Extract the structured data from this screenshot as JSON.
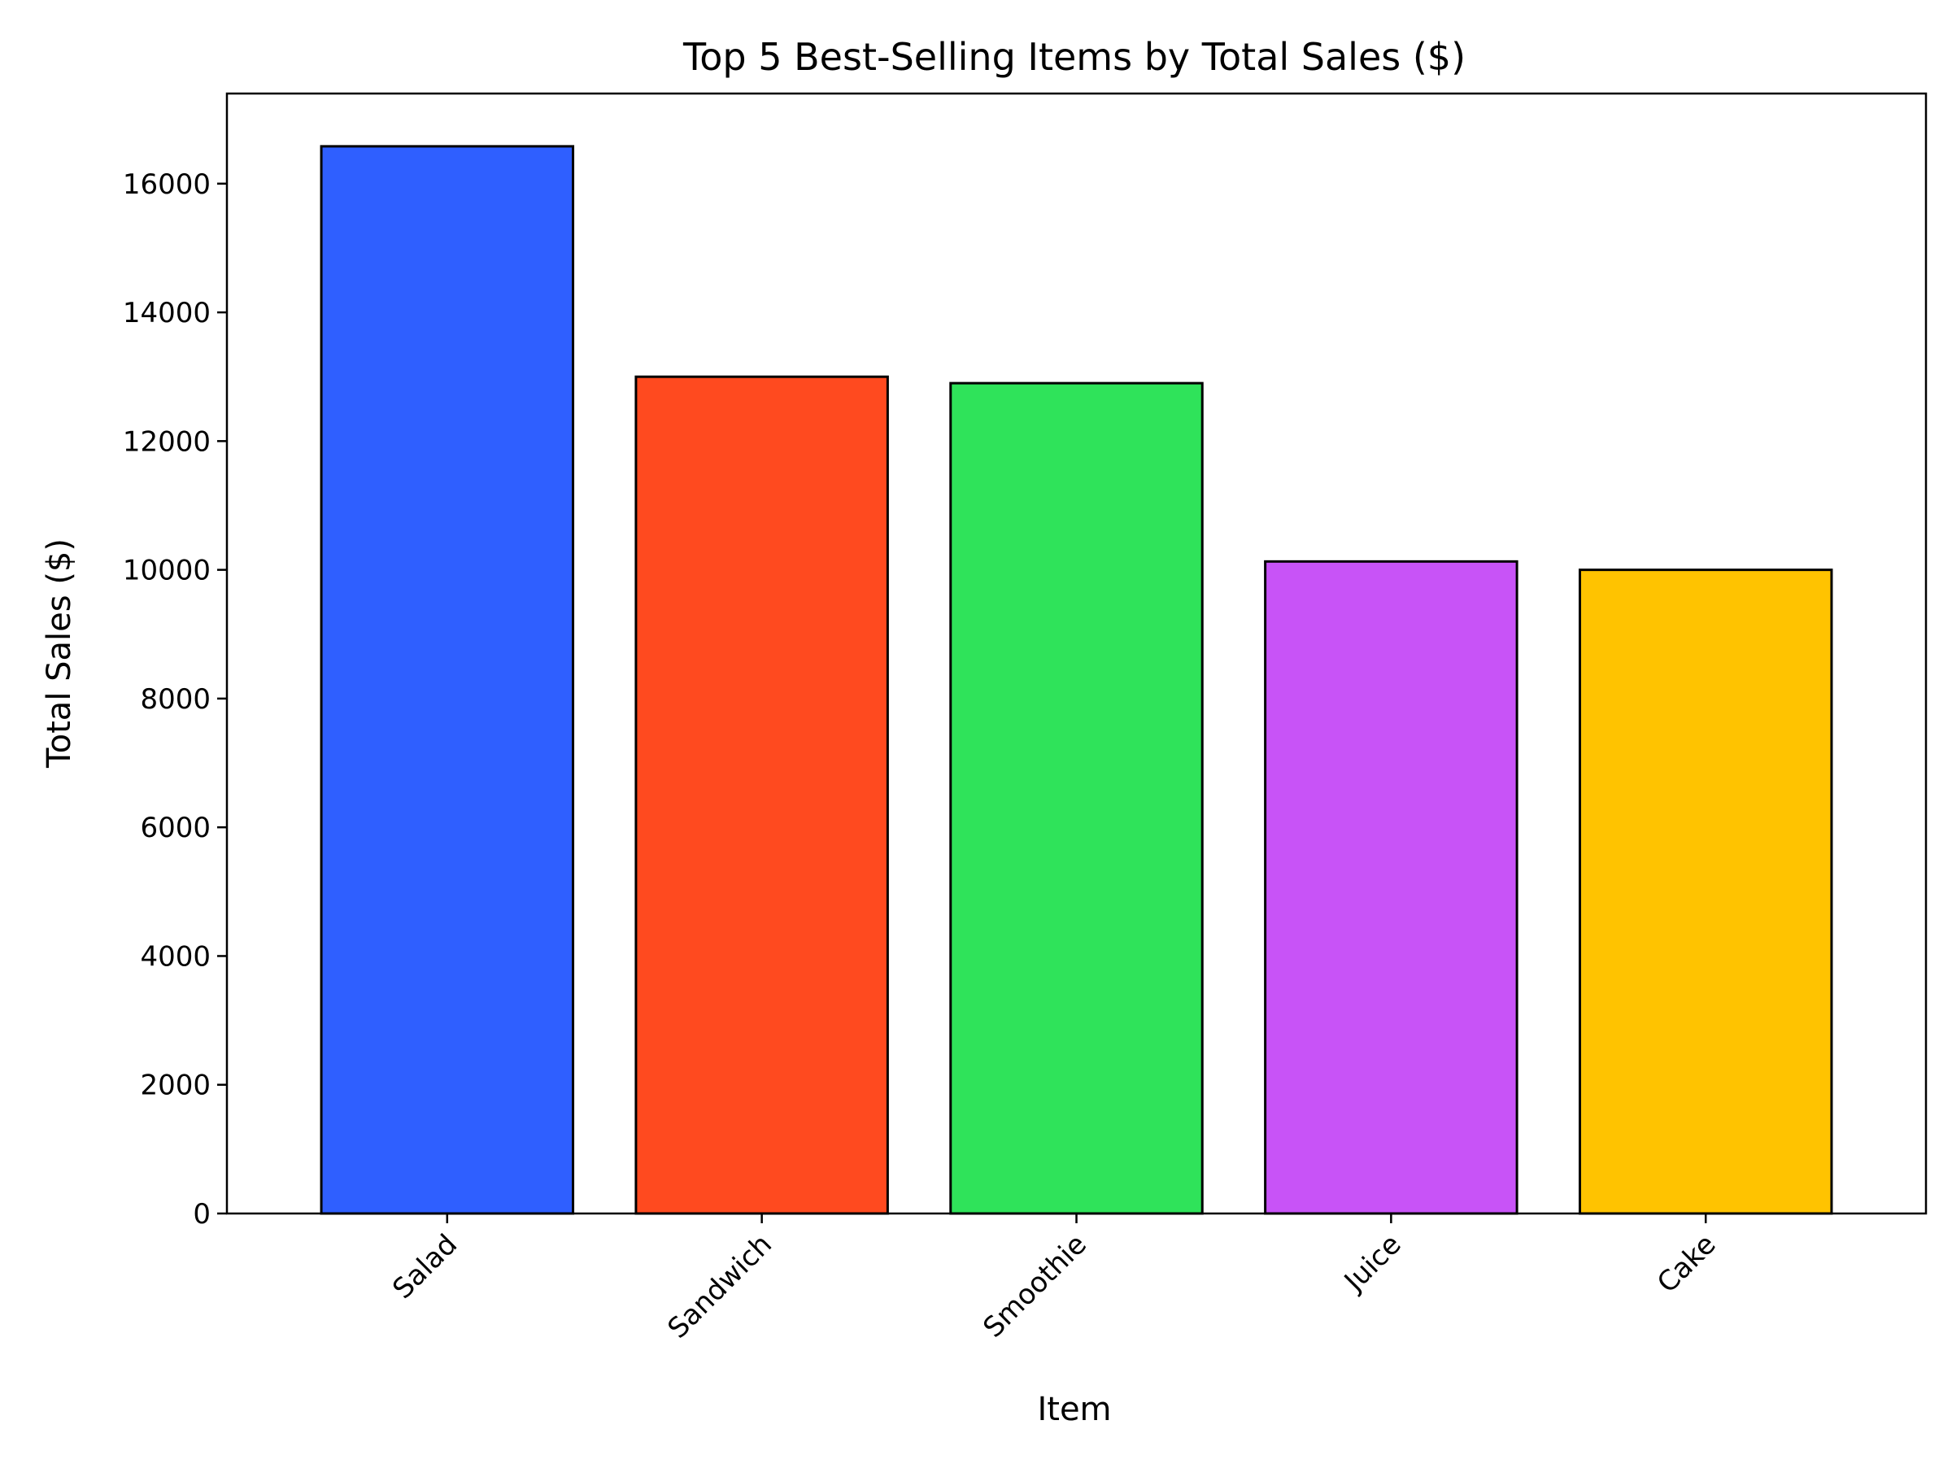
{
  "chart_data": {
    "type": "bar",
    "title": "Top 5 Best-Selling Items by Total Sales ($)",
    "xlabel": "Item",
    "ylabel": "Total Sales ($)",
    "categories": [
      "Salad",
      "Sandwich",
      "Smoothie",
      "Juice",
      "Cake"
    ],
    "values": [
      16580,
      13000,
      12900,
      10130,
      10000
    ],
    "colors": [
      "#2f5fff",
      "#ff4a1f",
      "#2fe35a",
      "#c853f7",
      "#ffc300"
    ],
    "ylim": [
      0,
      17400
    ],
    "yticks": [
      0,
      2000,
      4000,
      6000,
      8000,
      10000,
      12000,
      14000,
      16000
    ],
    "grid": false,
    "legend": "none"
  }
}
